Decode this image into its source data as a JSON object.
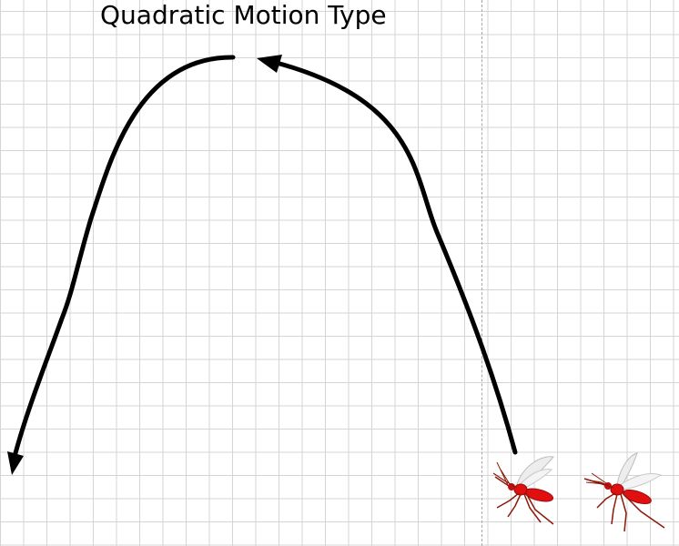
{
  "title": "Quadratic Motion Type",
  "colors": {
    "path": "#000000",
    "grid": "#d4d4d4",
    "divider": "#a8a8a8",
    "mosquito_body": "#e01010",
    "mosquito_leg": "#8b1a0a",
    "mosquito_wing": "#c8c8c8"
  },
  "icons": [
    "mosquito-icon",
    "mosquito-icon",
    "arrowhead-icon",
    "arrowhead-icon"
  ]
}
